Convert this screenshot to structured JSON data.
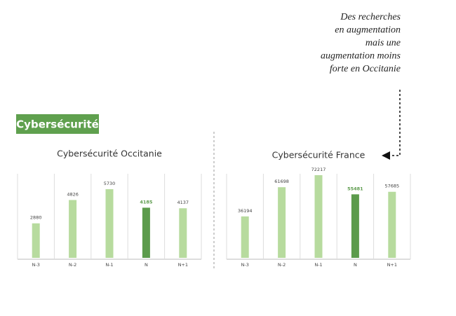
{
  "section_label": "Cybersécurité",
  "annotation": [
    "Des recherches",
    "en augmentation",
    "mais une",
    "augmentation moins",
    "forte en Occitanie"
  ],
  "chart_data": [
    {
      "type": "bar",
      "title": "Cybersécurité Occitanie",
      "categories": [
        "N-3",
        "N-2",
        "N-1",
        "N",
        "N+1"
      ],
      "values": [
        2880,
        4826,
        5730,
        4185,
        4137
      ],
      "colors": [
        "#b7db9e",
        "#b7db9e",
        "#b7db9e",
        "#5c9b4c",
        "#b7db9e"
      ]
    },
    {
      "type": "bar",
      "title": "Cybersécurité France",
      "categories": [
        "N-3",
        "N-2",
        "N-1",
        "N",
        "N+1"
      ],
      "values": [
        36194,
        61698,
        72217,
        55481,
        57685
      ],
      "colors": [
        "#b7db9e",
        "#b7db9e",
        "#b7db9e",
        "#5c9b4c",
        "#b7db9e"
      ]
    }
  ]
}
